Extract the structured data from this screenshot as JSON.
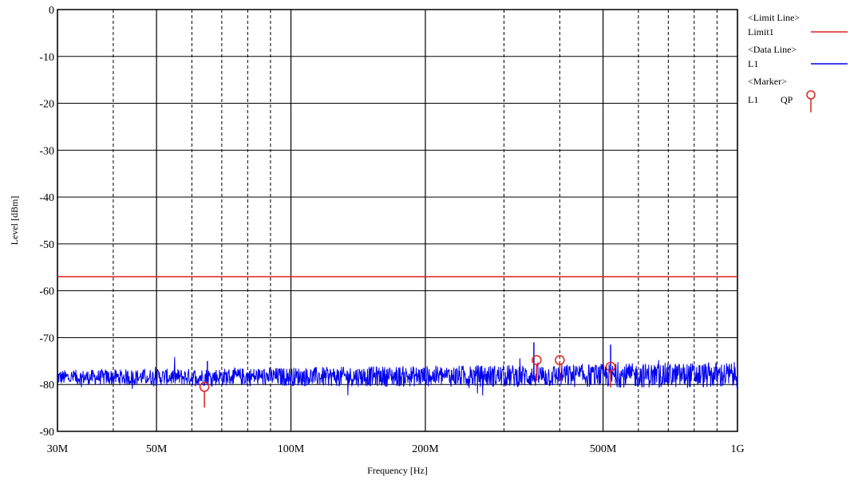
{
  "chart_data": {
    "type": "line",
    "x_scale": "log",
    "xlabel": "Frequency [Hz]",
    "ylabel": "Level [dBm]",
    "xlim": [
      30000000,
      1000000000
    ],
    "ylim": [
      -90,
      0
    ],
    "grid": true,
    "x_ticks": [
      {
        "value": 30000000,
        "label": "30M"
      },
      {
        "value": 50000000,
        "label": "50M"
      },
      {
        "value": 100000000,
        "label": "100M"
      },
      {
        "value": 200000000,
        "label": "200M"
      },
      {
        "value": 500000000,
        "label": "500M"
      },
      {
        "value": 1000000000,
        "label": "1G"
      }
    ],
    "y_ticks": [
      0,
      -10,
      -20,
      -30,
      -40,
      -50,
      -60,
      -70,
      -80,
      -90
    ],
    "limit_line": {
      "name": "Limit1",
      "value": -57,
      "color": "#e02020"
    },
    "series": [
      {
        "name": "L1",
        "color": "#0000ee",
        "noise_floor_start": -78.5,
        "noise_floor_end": -78.0,
        "spikes": [
          {
            "x": 65000000,
            "y": -75
          },
          {
            "x": 350000000,
            "y": -71
          },
          {
            "x": 520000000,
            "y": -71.5
          }
        ]
      }
    ],
    "markers": [
      {
        "x": 64000000,
        "y": -80.5
      },
      {
        "x": 355000000,
        "y": -74.8
      },
      {
        "x": 400000000,
        "y": -74.8
      },
      {
        "x": 520000000,
        "y": -76.2
      }
    ],
    "marker_color": "#e02020",
    "legend": {
      "placement": "right",
      "limit_header": "<Limit Line>",
      "limit_name": "Limit1",
      "data_header": "<Data Line>",
      "data_name": "L1",
      "marker_header": "<Marker>",
      "marker_name": "L1",
      "marker_type": "QP"
    }
  }
}
